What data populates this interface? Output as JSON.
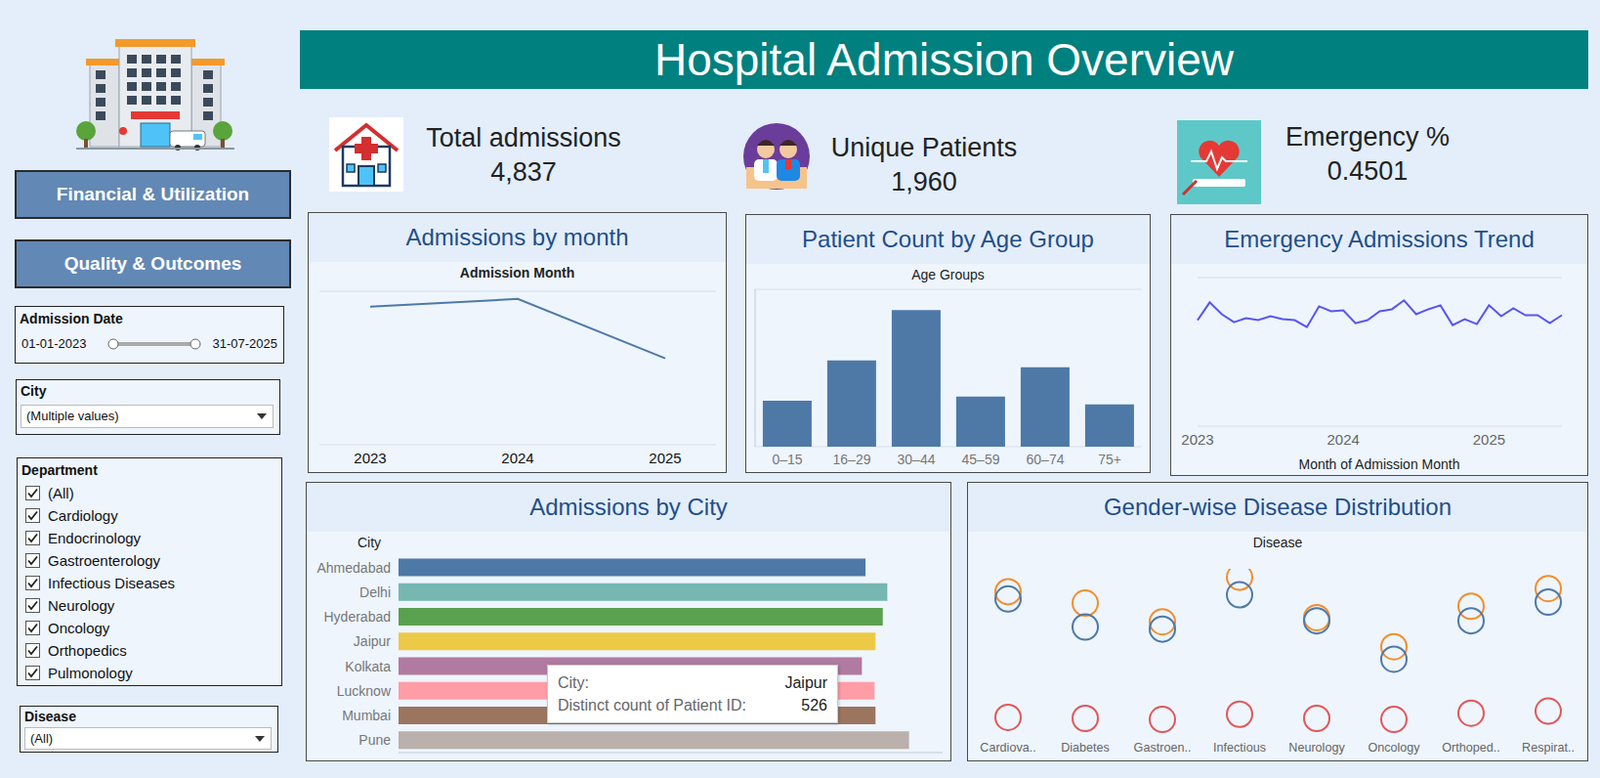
{
  "header": {
    "title": "Hospital Admission Overview"
  },
  "sidebar": {
    "buttons": [
      "Financial & Utilization",
      "Quality & Outcomes"
    ],
    "filters": {
      "admission_date": {
        "label": "Admission Date",
        "start": "01-01-2023",
        "end": "31-07-2025"
      },
      "city": {
        "label": "City",
        "value": "(Multiple values)"
      },
      "department": {
        "label": "Department",
        "options": [
          "(All)",
          "Cardiology",
          "Endocrinology",
          "Gastroenterology",
          "Infectious Diseases",
          "Neurology",
          "Oncology",
          "Orthopedics",
          "Pulmonology"
        ]
      },
      "disease": {
        "label": "Disease",
        "value": "(All)"
      }
    }
  },
  "kpis": [
    {
      "label": "Total admissions",
      "value": "4,837"
    },
    {
      "label": "Unique Patients",
      "value": "1,960"
    },
    {
      "label": "Emergency %",
      "value": "0.4501"
    }
  ],
  "chart_data": [
    {
      "type": "line",
      "title": "Admissions by month",
      "xlabel": "Admission Month",
      "categories": [
        "2023",
        "2024",
        "2025"
      ],
      "values": [
        1800,
        1900,
        1125
      ],
      "color": "#4e79a7",
      "ylim": [
        0,
        2000
      ],
      "yticks": [
        0,
        500,
        1000,
        1500,
        2000
      ],
      "grid": true,
      "tick_labels": "x"
    },
    {
      "type": "bar",
      "title": "Patient Count by Age Group",
      "xlabel": "Age Groups",
      "categories": [
        "0–15",
        "16–29",
        "30–44",
        "45–59",
        "60–74",
        "75+"
      ],
      "values": [
        204,
        384,
        608,
        223,
        353,
        188
      ],
      "color": "#4e79a7",
      "ylim": [
        0,
        700
      ],
      "yticks": [
        0,
        200,
        400,
        600
      ],
      "grid": true,
      "tick_labels": "x"
    },
    {
      "type": "line",
      "title": "Emergency Admissions Trend",
      "xlabel": "Month of Admission Month",
      "categories": [
        "2023",
        null,
        null,
        null,
        null,
        null,
        null,
        null,
        null,
        null,
        null,
        null,
        "2024",
        null,
        null,
        null,
        null,
        null,
        null,
        null,
        null,
        null,
        null,
        null,
        "2025",
        null,
        null,
        null,
        null,
        null,
        null
      ],
      "values": [
        107,
        125,
        113,
        105,
        109,
        107,
        111,
        108,
        107,
        100,
        121,
        116,
        117,
        104,
        107,
        116,
        118,
        127,
        113,
        118,
        122,
        102,
        108,
        103,
        122,
        111,
        119,
        112,
        112,
        104,
        112
      ],
      "color": "#5a55f0",
      "ylim": [
        0,
        150
      ],
      "yticks": [
        0,
        50,
        100,
        150
      ],
      "grid": true,
      "tick_labels": "x"
    },
    {
      "type": "bar",
      "orientation": "horizontal",
      "title": "Admissions by City",
      "ylabel": "City",
      "categories": [
        "Ahmedabad",
        "Delhi",
        "Hyderabad",
        "Jaipur",
        "Kolkata",
        "Lucknow",
        "Mumbai",
        "Pune"
      ],
      "values": [
        515,
        539,
        534,
        526,
        511,
        525,
        526,
        563
      ],
      "colors": [
        "#4e79a7",
        "#76b7b2",
        "#59a14f",
        "#edc948",
        "#b07aa1",
        "#ff9da7",
        "#9c755f",
        "#bab0ac"
      ],
      "xlim": [
        0,
        600
      ],
      "tick_labels": "y"
    },
    {
      "type": "scatter",
      "title": "Gender-wise Disease Distribution",
      "xlabel": "Disease",
      "categories": [
        "Cardiova..",
        "Diabetes",
        "Gastroen..",
        "Infectious",
        "Neurology",
        "Oncology",
        "Orthoped..",
        "Respirat.."
      ],
      "series": [
        {
          "color": "#f28e2b",
          "marker": "circle",
          "values": [
            138,
            127,
            109,
            152,
            113,
            85,
            124,
            141
          ]
        },
        {
          "color": "#4e79a7",
          "marker": "circle",
          "values": [
            131,
            104,
            102,
            135,
            110,
            73,
            110,
            128
          ]
        },
        {
          "color": "#e15759",
          "marker": "circle",
          "values": [
            17,
            16,
            15,
            20,
            16,
            15,
            21,
            23
          ]
        }
      ],
      "ylim": [
        0,
        160
      ],
      "yticks": [
        0,
        40,
        80,
        120,
        160
      ],
      "tick_labels": "x"
    }
  ],
  "tooltip": {
    "rows": [
      {
        "label": "City:",
        "value": "Jaipur"
      },
      {
        "label": "Distinct count of Patient ID:",
        "value": "526"
      }
    ]
  }
}
